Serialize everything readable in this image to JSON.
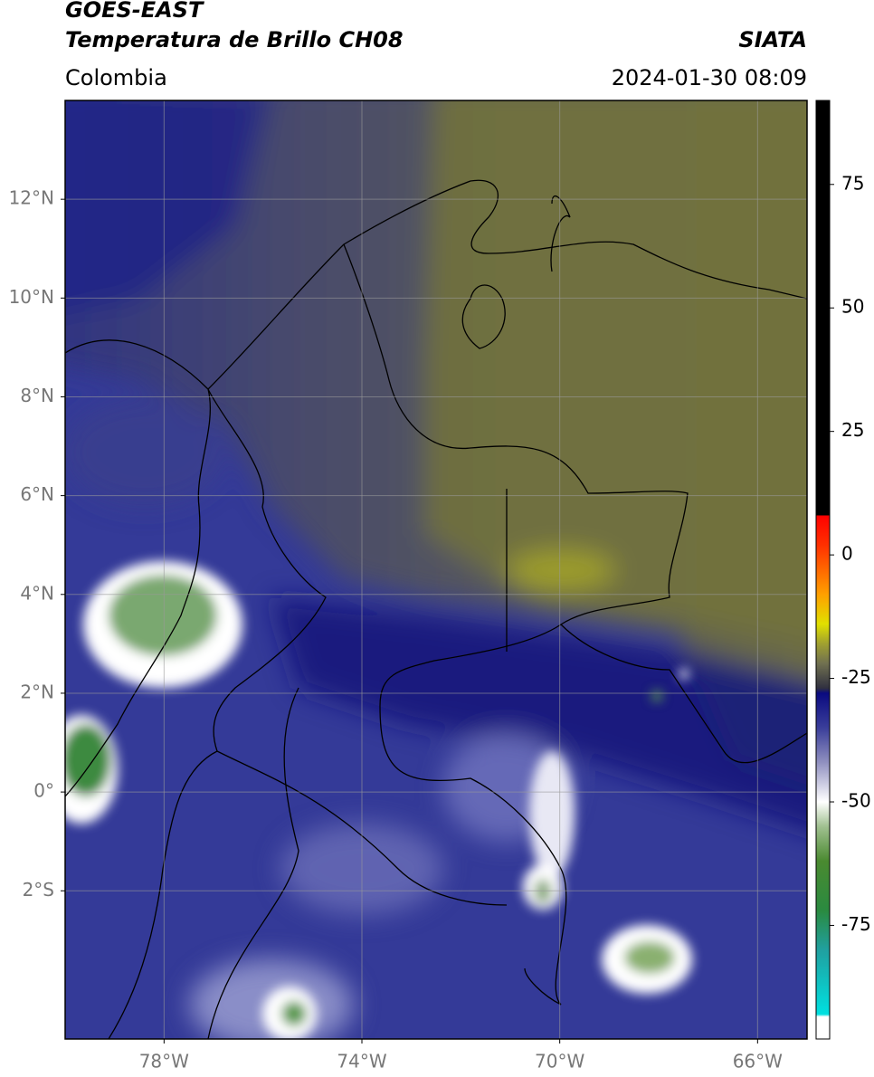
{
  "header": {
    "satellite": "GOES-EAST",
    "product": "Temperatura de Brillo CH08",
    "agency": "SIATA",
    "region": "Colombia",
    "datetime": "2024-01-30 08:09"
  },
  "map": {
    "lon_lim": [
      -80,
      -65
    ],
    "lat_lim": [
      -5,
      14
    ],
    "lon_ticks": [
      {
        "value": -78,
        "label": "78°W"
      },
      {
        "value": -74,
        "label": "74°W"
      },
      {
        "value": -70,
        "label": "70°W"
      },
      {
        "value": -66,
        "label": "66°W"
      }
    ],
    "lat_ticks": [
      {
        "value": 12,
        "label": "12°N"
      },
      {
        "value": 10,
        "label": "10°N"
      },
      {
        "value": 8,
        "label": "8°N"
      },
      {
        "value": 6,
        "label": "6°N"
      },
      {
        "value": 4,
        "label": "4°N"
      },
      {
        "value": 2,
        "label": "2°N"
      },
      {
        "value": 0,
        "label": "0°"
      },
      {
        "value": -2,
        "label": "2°S"
      }
    ],
    "grid": true
  },
  "colorbar": {
    "lim": [
      -98,
      92
    ],
    "ticks": [
      75,
      50,
      25,
      0,
      -25,
      -50,
      -75
    ],
    "stops": [
      {
        "value": -98,
        "color": "#ffffff"
      },
      {
        "value": -93.5,
        "color": "#ffffff"
      },
      {
        "value": -93,
        "color": "#00e0e0"
      },
      {
        "value": -80,
        "color": "#20a0a0"
      },
      {
        "value": -72,
        "color": "#2a8a40"
      },
      {
        "value": -62,
        "color": "#4a8a30"
      },
      {
        "value": -55,
        "color": "#a0c090"
      },
      {
        "value": -50,
        "color": "#ffffff"
      },
      {
        "value": -42,
        "color": "#9090c0"
      },
      {
        "value": -35,
        "color": "#3a3e9a"
      },
      {
        "value": -28,
        "color": "#0a0a80"
      },
      {
        "value": -27,
        "color": "#303040"
      },
      {
        "value": -22,
        "color": "#707050"
      },
      {
        "value": -18,
        "color": "#a0a030"
      },
      {
        "value": -14,
        "color": "#e0e000"
      },
      {
        "value": -8,
        "color": "#ffa000"
      },
      {
        "value": 2,
        "color": "#ff3000"
      },
      {
        "value": 8,
        "color": "#ff0000"
      },
      {
        "value": 8,
        "color": "#000000"
      },
      {
        "value": 92,
        "color": "#000000"
      }
    ]
  }
}
